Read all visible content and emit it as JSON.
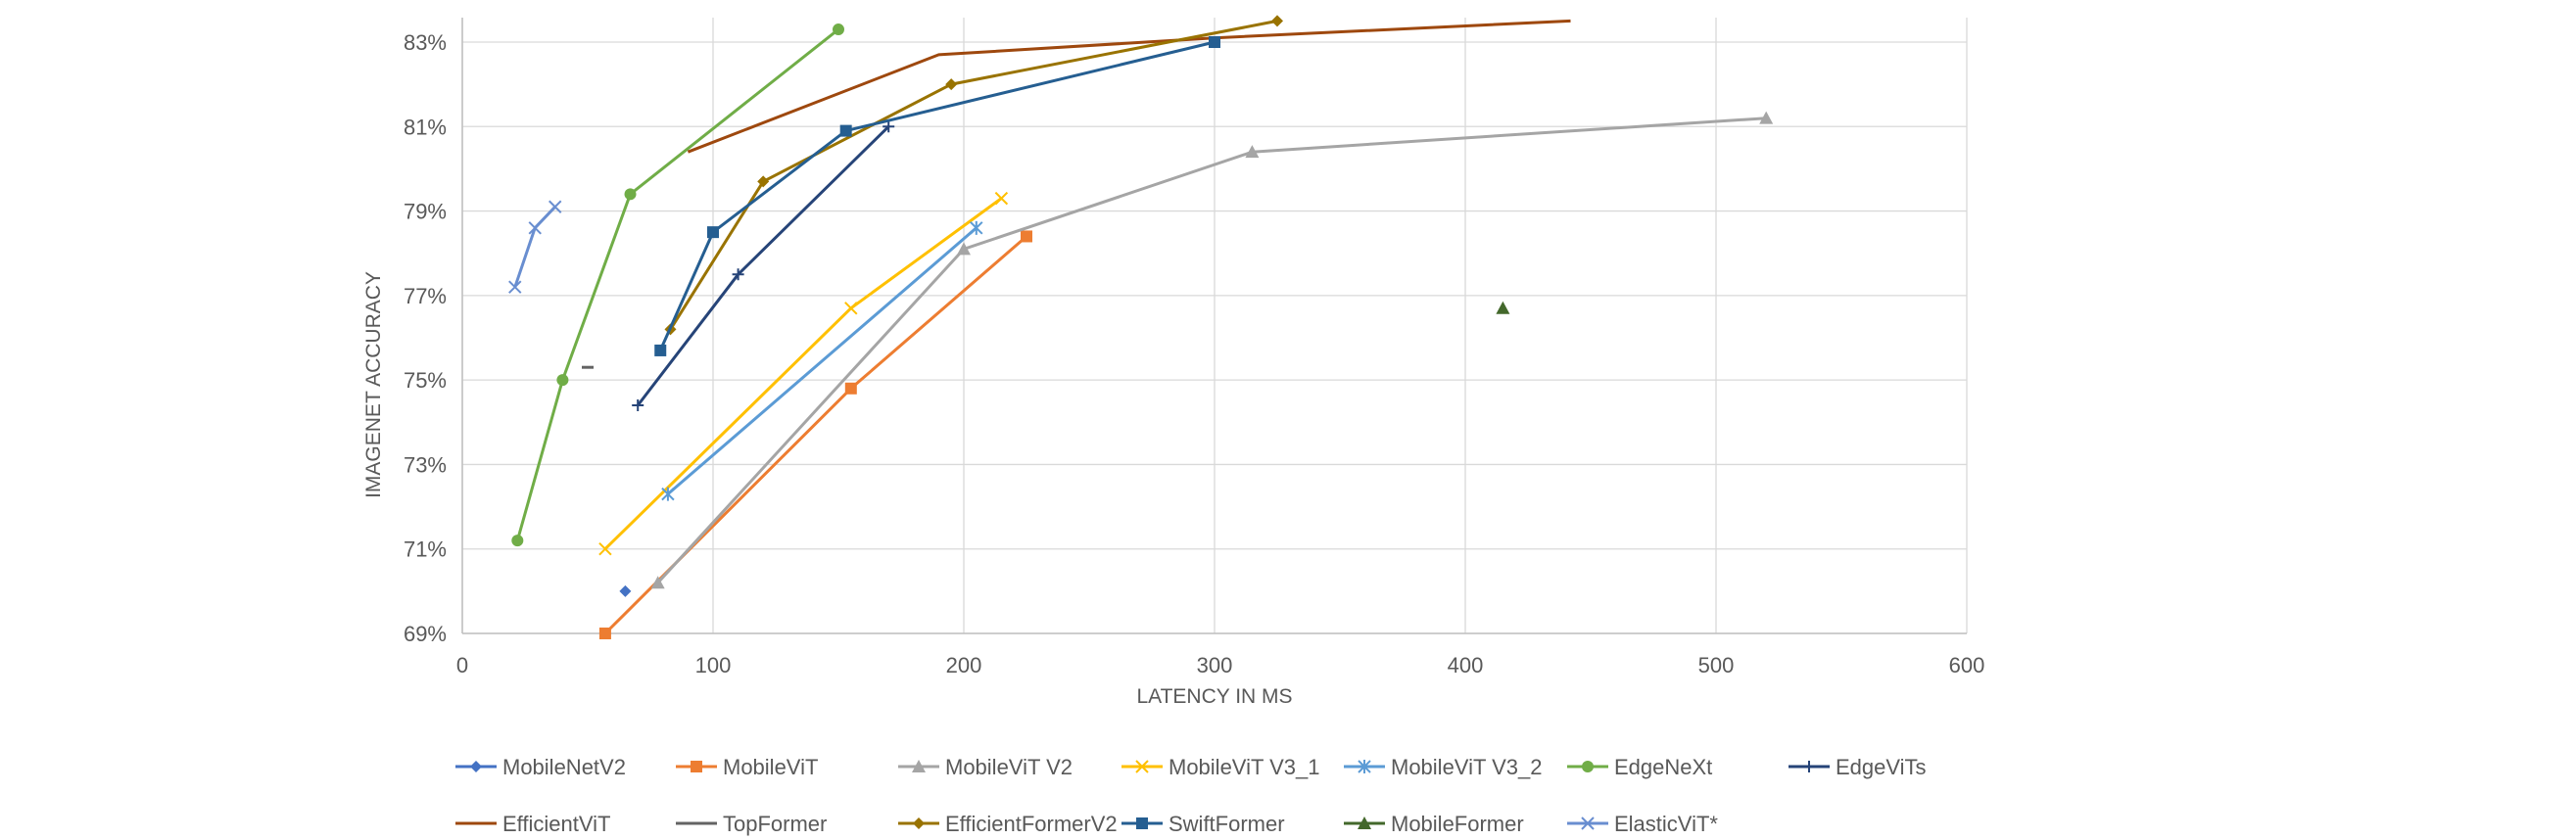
{
  "chart_data": {
    "type": "line",
    "title": "",
    "xlabel": "LATENCY IN MS",
    "ylabel": "IMAGENET  ACCURACY",
    "xlim": [
      0,
      600
    ],
    "ylim": [
      69,
      83.5
    ],
    "x_ticks": [
      "0",
      "100",
      "200",
      "300",
      "400",
      "500",
      "600"
    ],
    "y_ticks": [
      "69%",
      "71%",
      "73%",
      "75%",
      "77%",
      "79%",
      "81%",
      "83%"
    ],
    "grid": true,
    "legend_position": "bottom",
    "series": [
      {
        "name": "MobileNetV2",
        "color": "#4472C4",
        "marker": "diamond",
        "points": [
          [
            65,
            70.0
          ]
        ]
      },
      {
        "name": "MobileViT",
        "color": "#ED7D31",
        "marker": "square",
        "points": [
          [
            57,
            69.0
          ],
          [
            155,
            74.8
          ],
          [
            225,
            78.4
          ]
        ]
      },
      {
        "name": "MobileViT V2",
        "color": "#A5A5A5",
        "marker": "triangle",
        "points": [
          [
            78,
            70.2
          ],
          [
            200,
            78.1
          ],
          [
            315,
            80.4
          ],
          [
            520,
            81.2
          ]
        ]
      },
      {
        "name": "MobileViT V3_1",
        "color": "#FFC000",
        "marker": "x",
        "points": [
          [
            57,
            71.0
          ],
          [
            155,
            76.7
          ],
          [
            215,
            79.3
          ]
        ]
      },
      {
        "name": "MobileViT V3_2",
        "color": "#5B9BD5",
        "marker": "star",
        "points": [
          [
            82,
            72.3
          ],
          [
            205,
            78.6
          ]
        ]
      },
      {
        "name": "EdgeNeXt",
        "color": "#70AD47",
        "marker": "circle",
        "points": [
          [
            22,
            71.2
          ],
          [
            40,
            75.0
          ],
          [
            67,
            79.4
          ],
          [
            150,
            83.3
          ]
        ]
      },
      {
        "name": "EdgeViTs",
        "color": "#264478",
        "marker": "plus",
        "points": [
          [
            70,
            74.4
          ],
          [
            110,
            77.5
          ],
          [
            170,
            81.0
          ]
        ]
      },
      {
        "name": "EfficientViT",
        "color": "#9E480E",
        "marker": "none",
        "points": [
          [
            90,
            80.4
          ],
          [
            190,
            82.7
          ],
          [
            300,
            83.1
          ],
          [
            442,
            83.5
          ]
        ]
      },
      {
        "name": "TopFormer",
        "color": "#636363",
        "marker": "dash",
        "points": [
          [
            50,
            75.3
          ]
        ]
      },
      {
        "name": "EfficientFormerV2",
        "color": "#997300",
        "marker": "diamond",
        "points": [
          [
            83,
            76.2
          ],
          [
            120,
            79.7
          ],
          [
            195,
            82.0
          ],
          [
            325,
            83.5
          ]
        ]
      },
      {
        "name": "SwiftFormer",
        "color": "#255E91",
        "marker": "square",
        "points": [
          [
            79,
            75.7
          ],
          [
            100,
            78.5
          ],
          [
            153,
            80.9
          ],
          [
            300,
            83.0
          ]
        ]
      },
      {
        "name": "MobileFormer",
        "color": "#43682B",
        "marker": "triangle",
        "points": [
          [
            415,
            76.7
          ]
        ]
      },
      {
        "name": "ElasticViT*",
        "color": "#698ED0",
        "marker": "x",
        "points": [
          [
            21,
            77.2
          ],
          [
            29,
            78.6
          ],
          [
            37,
            79.1
          ]
        ]
      }
    ]
  }
}
